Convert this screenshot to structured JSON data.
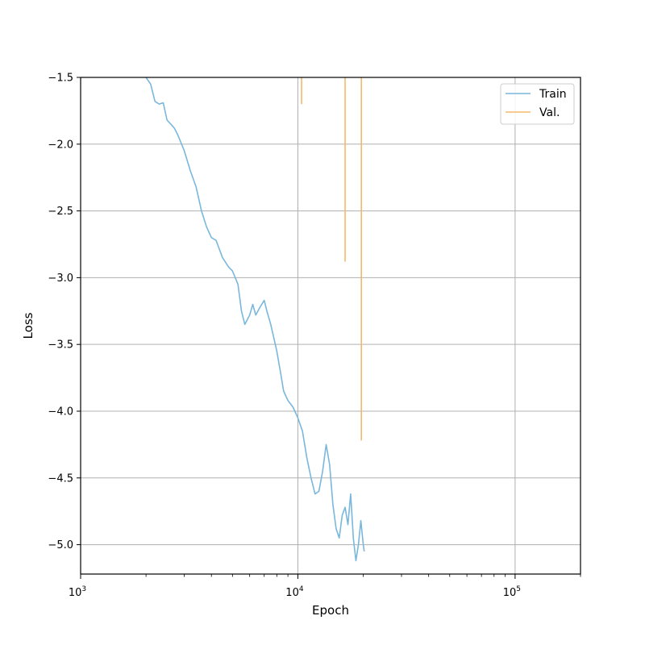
{
  "chart_data": {
    "type": "line",
    "xlabel": "Epoch",
    "ylabel": "Loss",
    "xscale": "log",
    "xlim": [
      1000,
      200000
    ],
    "ylim": [
      -5.22,
      -1.5
    ],
    "grid": true,
    "legend_position": "top-right",
    "x_major_ticks": [
      {
        "value": 1000,
        "base": "10",
        "exp": "3"
      },
      {
        "value": 10000,
        "base": "10",
        "exp": "4"
      },
      {
        "value": 100000,
        "base": "10",
        "exp": "5"
      }
    ],
    "y_ticks": [
      {
        "value": -1.5,
        "label": "−1.5"
      },
      {
        "value": -2.0,
        "label": "−2.0"
      },
      {
        "value": -2.5,
        "label": "−2.5"
      },
      {
        "value": -3.0,
        "label": "−3.0"
      },
      {
        "value": -3.5,
        "label": "−3.5"
      },
      {
        "value": -4.0,
        "label": "−4.0"
      },
      {
        "value": -4.5,
        "label": "−4.5"
      },
      {
        "value": -5.0,
        "label": "−5.0"
      }
    ],
    "series": [
      {
        "name": "Train",
        "color": "#7ab7dc",
        "points": [
          [
            2000,
            -1.5
          ],
          [
            2100,
            -1.55
          ],
          [
            2200,
            -1.68
          ],
          [
            2300,
            -1.7
          ],
          [
            2400,
            -1.69
          ],
          [
            2500,
            -1.82
          ],
          [
            2600,
            -1.85
          ],
          [
            2700,
            -1.88
          ],
          [
            2800,
            -1.93
          ],
          [
            3000,
            -2.05
          ],
          [
            3200,
            -2.2
          ],
          [
            3400,
            -2.32
          ],
          [
            3600,
            -2.5
          ],
          [
            3800,
            -2.62
          ],
          [
            4000,
            -2.7
          ],
          [
            4200,
            -2.72
          ],
          [
            4500,
            -2.85
          ],
          [
            4800,
            -2.92
          ],
          [
            5000,
            -2.95
          ],
          [
            5300,
            -3.05
          ],
          [
            5500,
            -3.25
          ],
          [
            5700,
            -3.35
          ],
          [
            6000,
            -3.28
          ],
          [
            6200,
            -3.2
          ],
          [
            6400,
            -3.28
          ],
          [
            6700,
            -3.22
          ],
          [
            7000,
            -3.17
          ],
          [
            7200,
            -3.25
          ],
          [
            7500,
            -3.35
          ],
          [
            8000,
            -3.55
          ],
          [
            8300,
            -3.7
          ],
          [
            8600,
            -3.85
          ],
          [
            9000,
            -3.92
          ],
          [
            9500,
            -3.97
          ],
          [
            10000,
            -4.05
          ],
          [
            10500,
            -4.15
          ],
          [
            11000,
            -4.35
          ],
          [
            11500,
            -4.5
          ],
          [
            12000,
            -4.62
          ],
          [
            12500,
            -4.6
          ],
          [
            13000,
            -4.45
          ],
          [
            13500,
            -4.25
          ],
          [
            14000,
            -4.4
          ],
          [
            14500,
            -4.7
          ],
          [
            15000,
            -4.88
          ],
          [
            15500,
            -4.95
          ],
          [
            16000,
            -4.78
          ],
          [
            16500,
            -4.72
          ],
          [
            17000,
            -4.85
          ],
          [
            17500,
            -4.62
          ],
          [
            18000,
            -4.95
          ],
          [
            18500,
            -5.12
          ],
          [
            19000,
            -5.0
          ],
          [
            19500,
            -4.82
          ],
          [
            20000,
            -5.0
          ],
          [
            20200,
            -5.05
          ]
        ]
      },
      {
        "name": "Val.",
        "color": "#f5b86a",
        "spikes": [
          {
            "x": 10400,
            "y": -1.7
          },
          {
            "x": 16500,
            "y": -2.88
          },
          {
            "x": 19600,
            "y": -4.22
          }
        ]
      }
    ]
  }
}
